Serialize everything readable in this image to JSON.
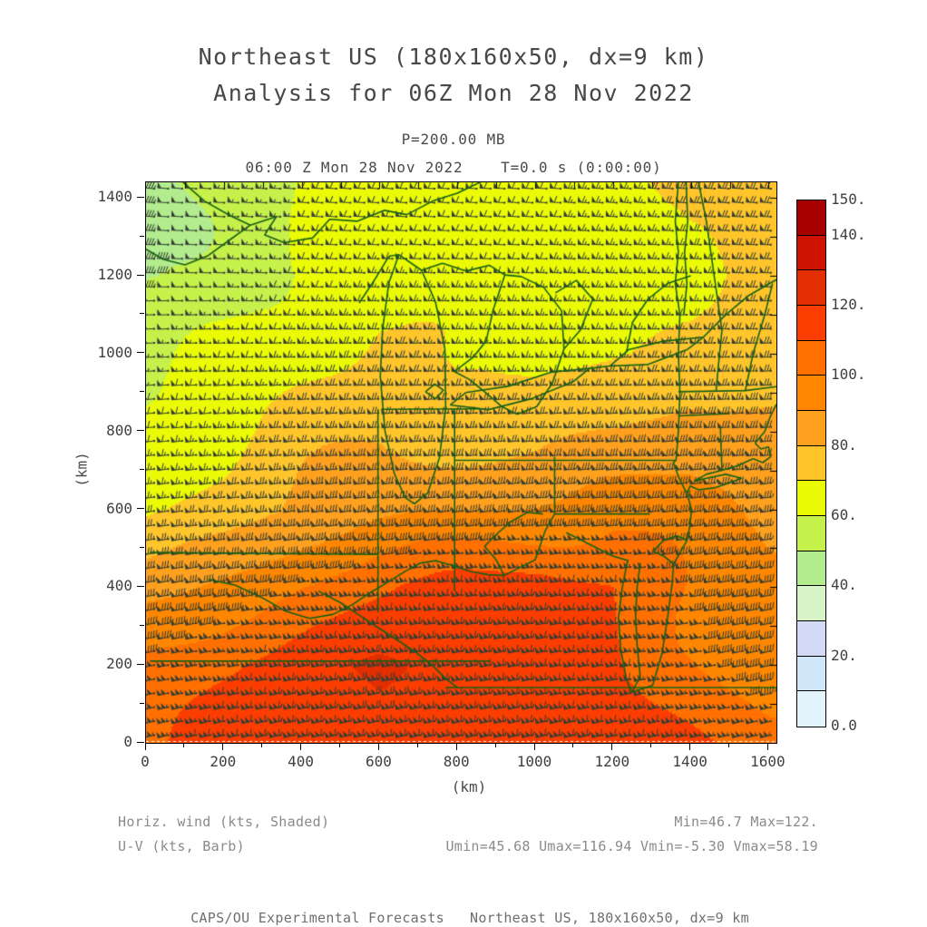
{
  "header": {
    "title_line1": "Northeast US (180x160x50, dx=9 km)",
    "title_line2": "Analysis for 06Z Mon 28 Nov 2022",
    "level_label": "P=200.00 MB",
    "time_label": "06:00 Z Mon 28 Nov 2022    T=0.0 s (0:00:00)"
  },
  "annotations": {
    "field_label": "Horiz. wind (kts, Shaded)",
    "vector_label": "U-V (kts, Barb)",
    "minmax_label": "Min=46.7 Max=122.",
    "uv_stats_label": "Umin=45.68 Umax=116.94 Vmin=-5.30 Vmax=58.19"
  },
  "footer": {
    "credit": "CAPS/OU Experimental Forecasts   Northeast US, 180x160x50, dx=9 km"
  },
  "map": {
    "border_color": "#166016",
    "barb_color": "#343e34",
    "frame_color": "#000000"
  },
  "chart_data": {
    "type": "heatmap",
    "title": "Horizontal wind (kts, Shaded) with U-V wind barbs at P=200.00 MB",
    "xlabel": "(km)",
    "ylabel": "(km)",
    "xlim": [
      0,
      1620
    ],
    "ylim": [
      0,
      1440
    ],
    "x_tick_values": [
      0,
      200,
      400,
      600,
      800,
      1000,
      1200,
      1400,
      1600
    ],
    "x_tick_labels": [
      "0",
      "200",
      "400",
      "600",
      "800",
      "1000",
      "1200",
      "1400",
      "1600"
    ],
    "y_tick_values": [
      0,
      200,
      400,
      600,
      800,
      1000,
      1200,
      1400
    ],
    "y_tick_labels": [
      "0",
      "200",
      "400",
      "600",
      "800",
      "1000",
      "1200",
      "1400"
    ],
    "minor_tick_step": 100,
    "colorbar": {
      "levels": [
        0,
        10,
        20,
        30,
        40,
        50,
        60,
        70,
        80,
        90,
        100,
        110,
        120,
        130,
        140,
        150
      ],
      "colors": [
        "#e2f3fb",
        "#cfe7f8",
        "#d3daf6",
        "#d7f5c6",
        "#b2ec8e",
        "#c6f04a",
        "#ebfb06",
        "#ffc52b",
        "#ffa01e",
        "#ff8700",
        "#ff7000",
        "#fc3d00",
        "#e22e00",
        "#cd1200",
        "#a80000"
      ],
      "ticks": [
        {
          "value": 150,
          "label": "150."
        },
        {
          "value": 140,
          "label": "140."
        },
        {
          "value": 120,
          "label": "120."
        },
        {
          "value": 100,
          "label": "100."
        },
        {
          "value": 80,
          "label": "80."
        },
        {
          "value": 60,
          "label": "60."
        },
        {
          "value": 40,
          "label": "40."
        },
        {
          "value": 20,
          "label": "20."
        },
        {
          "value": 0,
          "label": "0.0"
        }
      ]
    },
    "field": {
      "name": "horizontal wind speed",
      "units": "kts",
      "grid_x": [
        0,
        200,
        400,
        600,
        800,
        1000,
        1200,
        1400,
        1600
      ],
      "grid_y": [
        1400,
        1200,
        1000,
        800,
        600,
        400,
        200,
        0
      ],
      "values": [
        [
          49,
          55,
          60,
          62,
          63,
          64,
          66,
          73,
          71
        ],
        [
          48,
          54,
          62,
          66,
          65,
          65,
          66,
          68,
          73
        ],
        [
          55,
          60,
          68,
          74,
          67,
          67,
          69,
          71,
          76
        ],
        [
          63,
          66,
          73,
          79,
          78,
          74,
          78,
          86,
          83
        ],
        [
          70,
          74,
          82,
          86,
          89,
          93,
          97,
          92,
          87
        ],
        [
          86,
          93,
          101,
          107,
          113,
          116,
          112,
          99,
          93
        ],
        [
          101,
          109,
          116,
          123,
          119,
          115,
          112,
          104,
          92
        ],
        [
          106,
          113,
          119,
          119,
          116,
          118,
          114,
          111,
          108
        ]
      ]
    },
    "stats": {
      "min": 46.7,
      "max": 122,
      "umin": 45.68,
      "umax": 116.94,
      "vmin": -5.3,
      "vmax": 58.19
    },
    "barbs": {
      "units": "kts",
      "pennant": 50,
      "full_barb": 10,
      "half_barb": 5,
      "spacing_km": 36
    }
  }
}
